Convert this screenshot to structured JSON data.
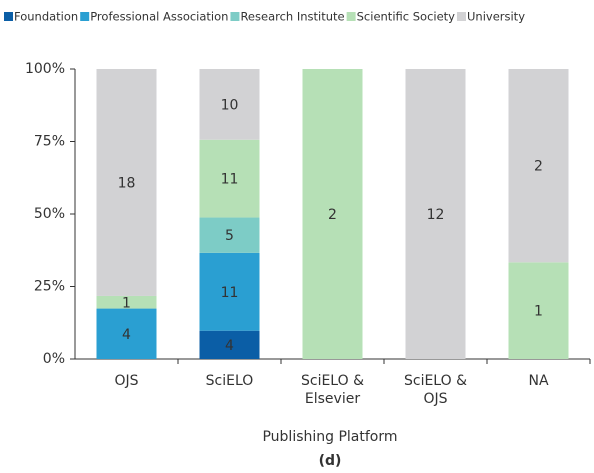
{
  "chart_data": {
    "type": "bar",
    "stacking": "percent",
    "subtitle": "(d)",
    "x_label": "Publishing Platform",
    "categories": [
      "OJS",
      "SciELO",
      "SciELO &\nElsevier",
      "SciELO &\nOJS",
      "NA"
    ],
    "series": [
      {
        "name": "Foundation",
        "color": "#0b5ea6",
        "values": [
          null,
          4,
          null,
          null,
          null
        ]
      },
      {
        "name": "Professional Association",
        "color": "#2a9fd2",
        "values": [
          4,
          11,
          null,
          null,
          null
        ]
      },
      {
        "name": "Research Institute",
        "color": "#7dccc6",
        "values": [
          null,
          5,
          null,
          null,
          null
        ]
      },
      {
        "name": "Scientific Society",
        "color": "#b6e0b6",
        "values": [
          1,
          11,
          2,
          null,
          1
        ]
      },
      {
        "name": "University",
        "color": "#d2d2d4",
        "values": [
          18,
          10,
          null,
          12,
          2
        ]
      }
    ],
    "ylim": [
      0,
      100
    ],
    "yticks": [
      {
        "value": 0,
        "label": "0%"
      },
      {
        "value": 25,
        "label": "25%"
      },
      {
        "value": 50,
        "label": "50%"
      },
      {
        "value": 75,
        "label": "75%"
      },
      {
        "value": 100,
        "label": "100%"
      }
    ],
    "legend": "top-left"
  }
}
